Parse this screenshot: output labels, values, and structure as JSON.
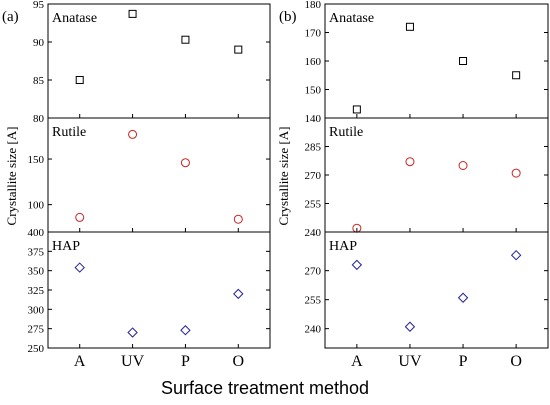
{
  "chart_data": [
    {
      "type": "scatter",
      "panel_label": "(a)",
      "categories": [
        "A",
        "UV",
        "P",
        "O"
      ],
      "xlabel": "Surface treatment method",
      "ylabel": "Crystallite size [A]",
      "subplots": [
        {
          "title": "Anatase",
          "marker": "square",
          "color": "#000000",
          "ylim": [
            80,
            95
          ],
          "yticks": [
            "80",
            "85",
            "90",
            "95"
          ],
          "values": [
            85.0,
            93.7,
            90.3,
            89.0
          ]
        },
        {
          "title": "Rutile",
          "marker": "circle",
          "color": "#cc2222",
          "ylim": [
            70,
            195
          ],
          "yticks": [
            "100",
            "150"
          ],
          "values": [
            86,
            177,
            146,
            84
          ]
        },
        {
          "title": "HAP",
          "marker": "diamond",
          "color": "#22229a",
          "ylim": [
            250,
            400
          ],
          "yticks": [
            "250",
            "275",
            "300",
            "325",
            "350",
            "375",
            "400"
          ],
          "values": [
            354,
            270,
            273,
            320
          ]
        }
      ]
    },
    {
      "type": "scatter",
      "panel_label": "(b)",
      "categories": [
        "A",
        "UV",
        "P",
        "O"
      ],
      "xlabel": "Surface treatment method",
      "ylabel": "Crystallite size [A]",
      "subplots": [
        {
          "title": "Anatase",
          "marker": "square",
          "color": "#000000",
          "ylim": [
            140,
            180
          ],
          "yticks": [
            "140",
            "150",
            "160",
            "170",
            "180"
          ],
          "values": [
            143,
            172,
            160,
            155
          ]
        },
        {
          "title": "Rutile",
          "marker": "circle",
          "color": "#cc2222",
          "ylim": [
            240,
            300
          ],
          "yticks": [
            "240",
            "255",
            "270",
            "285"
          ],
          "values": [
            242,
            277,
            275,
            271
          ]
        },
        {
          "title": "HAP",
          "marker": "diamond",
          "color": "#22229a",
          "ylim": [
            230,
            290
          ],
          "yticks": [
            "240",
            "255",
            "270"
          ],
          "values": [
            273,
            241,
            256,
            278
          ]
        }
      ]
    }
  ]
}
